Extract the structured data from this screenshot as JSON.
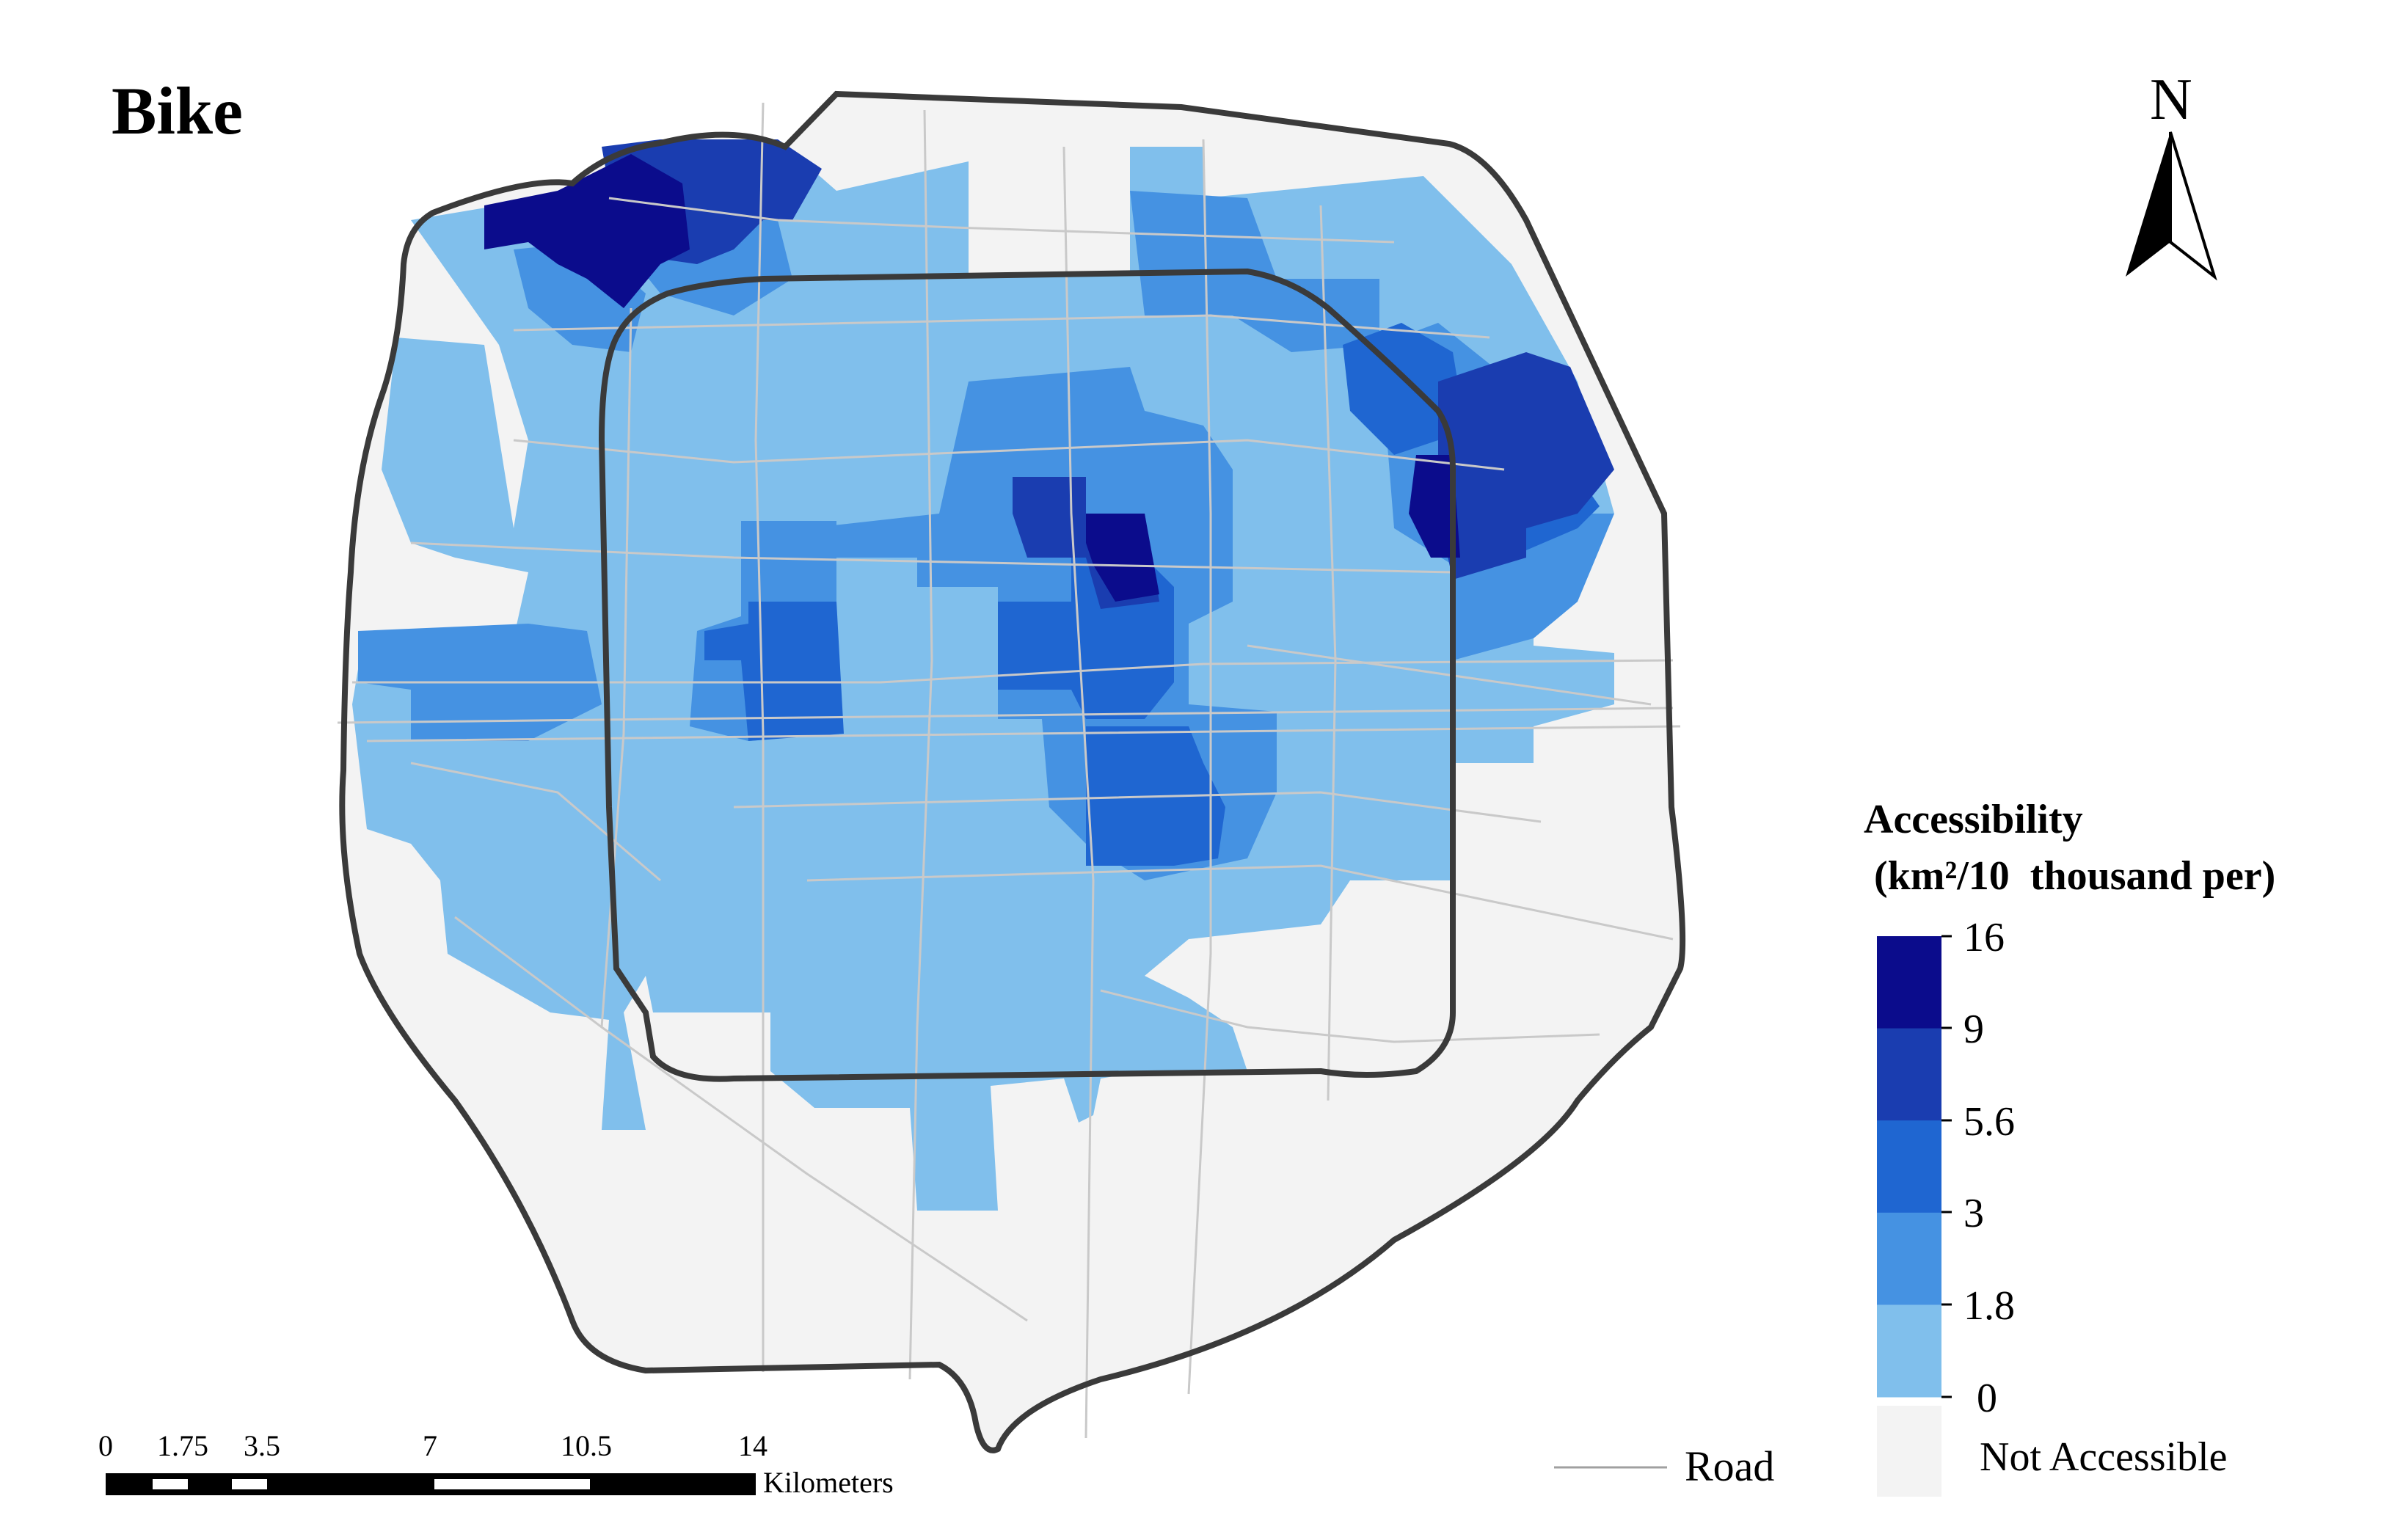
{
  "map": {
    "title": "Bike",
    "north_label": "N",
    "road_label": "Road",
    "legend": {
      "title_line1": "Accessibility",
      "title_line2": " (km²/10  thousand per)",
      "breaks": [
        "16",
        "9",
        "5.6",
        "3",
        "1.8",
        "0"
      ],
      "classes": [
        {
          "range": "9 – 16",
          "color": "#0b0c8c"
        },
        {
          "range": "5.6 – 9",
          "color": "#1a3db0"
        },
        {
          "range": "3 – 5.6",
          "color": "#1f66d1"
        },
        {
          "range": "1.8 – 3",
          "color": "#4592e2"
        },
        {
          "range": "0 – 1.8",
          "color": "#80bfec"
        }
      ],
      "not_accessible_label": "Not Accessible",
      "not_accessible_color": "#f3f3f3"
    },
    "scale_bar": {
      "labels": [
        "0",
        "1.75",
        "3.5",
        "7",
        "10.5",
        "14"
      ],
      "unit": "Kilometers"
    },
    "colors": {
      "boundary": "#3a3a3a",
      "road": "#c9c9c9"
    }
  }
}
